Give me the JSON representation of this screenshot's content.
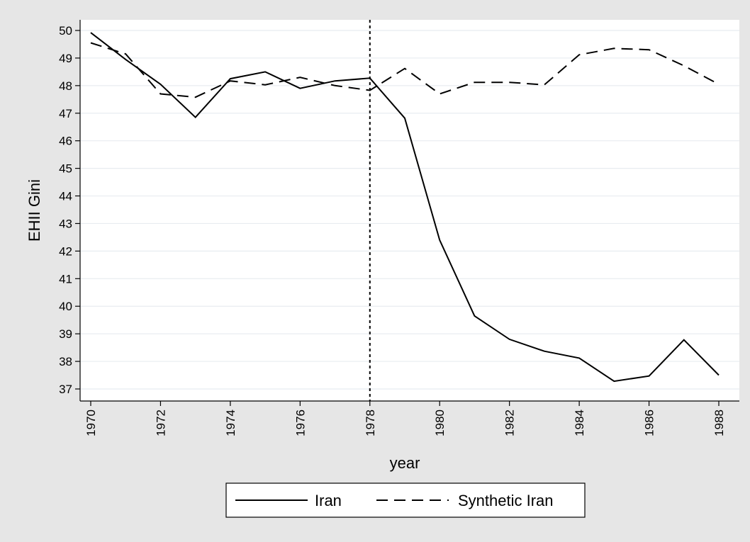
{
  "chart_data": {
    "type": "line",
    "xlabel": "year",
    "ylabel": "EHII Gini",
    "xlim": [
      1970,
      1988
    ],
    "ylim": [
      37,
      50
    ],
    "x_ticks": [
      "1970",
      "1972",
      "1974",
      "1976",
      "1978",
      "1980",
      "1982",
      "1984",
      "1986",
      "1988"
    ],
    "y_ticks": [
      "37",
      "38",
      "39",
      "40",
      "41",
      "42",
      "43",
      "44",
      "45",
      "46",
      "47",
      "48",
      "49",
      "50"
    ],
    "grid": true,
    "legend_position": "bottom",
    "reference_line": {
      "x": 1978,
      "style": "dotted"
    },
    "x": [
      1970,
      1971,
      1972,
      1973,
      1974,
      1975,
      1976,
      1977,
      1978,
      1979,
      1980,
      1981,
      1982,
      1983,
      1984,
      1985,
      1986,
      1987,
      1988
    ],
    "series": [
      {
        "name": "Iran",
        "style": "solid",
        "values": [
          49.92,
          48.95,
          48.05,
          46.85,
          48.25,
          48.5,
          47.9,
          48.17,
          48.27,
          46.82,
          42.4,
          39.65,
          38.8,
          38.37,
          38.12,
          37.28,
          37.47,
          38.78,
          37.5
        ]
      },
      {
        "name": "Synthetic Iran",
        "style": "dashed",
        "values": [
          49.55,
          49.15,
          47.7,
          47.58,
          48.17,
          48.03,
          48.3,
          48.0,
          47.83,
          48.62,
          47.7,
          48.12,
          48.12,
          48.03,
          49.12,
          49.35,
          49.3,
          48.72,
          48.05
        ]
      }
    ]
  }
}
